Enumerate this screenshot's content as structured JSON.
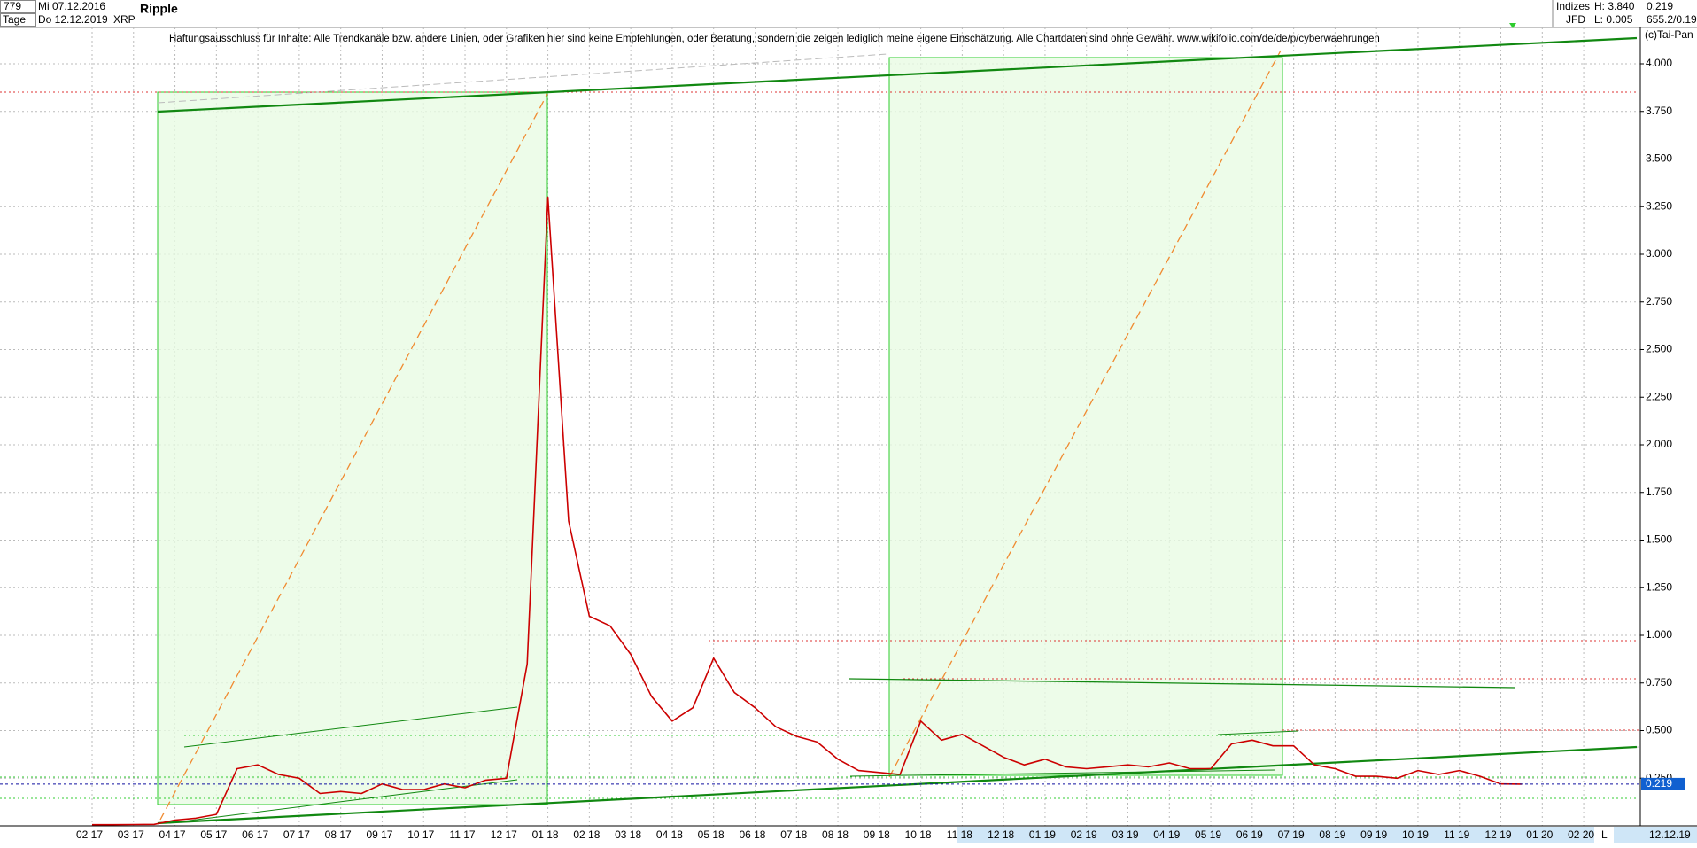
{
  "chart_data": {
    "type": "line",
    "title": "Ripple",
    "annotations": {
      "count": "779",
      "start": "Mi 07.12.2016",
      "period": "Tage",
      "end": "Do 12.12.2019",
      "symbol": "XRP",
      "disclaimer": "Haftungsausschluss für Inhalte: Alle Trendkanäle bzw. andere Linien, oder Grafiken hier sind keine Empfehlungen, oder Beratung, sondern die zeigen lediglich meine eigene Einschätzung. Alle Chartdaten sind ohne Gewähr.  www.wikifolio.com/de/de/p/cyberwaehrungen",
      "index": "Indizes",
      "broker": "JFD",
      "high": "H: 3.840",
      "low": "L: 0.005",
      "volume": "655.2/0.19",
      "copyright": "(c)Tai-Pan",
      "scale": "L",
      "last_date": "12.12.19"
    },
    "categories": [
      "02 17",
      null,
      "03 17",
      null,
      "04 17",
      null,
      "05 17",
      null,
      "06 17",
      null,
      "07 17",
      null,
      "08 17",
      null,
      "09 17",
      null,
      "10 17",
      null,
      "11 17",
      null,
      "12 17",
      null,
      "01 18",
      null,
      "02 18",
      null,
      "03 18",
      null,
      "04 18",
      null,
      "05 18",
      null,
      "06 18",
      null,
      "07 18",
      null,
      "08 18",
      null,
      "09 18",
      null,
      "10 18",
      null,
      "11 18",
      null,
      "12 18",
      null,
      "01 19",
      null,
      "02 19",
      null,
      "03 19",
      null,
      "04 19",
      null,
      "05 19",
      null,
      "06 19",
      null,
      "07 19",
      null,
      "08 19",
      null,
      "09 19",
      null,
      "10 19",
      null,
      "11 19",
      null,
      "12 19",
      null,
      "01 20",
      null,
      "02 20"
    ],
    "series": [
      {
        "name": "XRP",
        "color": "#cc0000",
        "values": [
          0.006,
          0.006,
          0.007,
          0.008,
          0.03,
          0.04,
          0.06,
          0.3,
          0.32,
          0.27,
          0.25,
          0.17,
          0.18,
          0.17,
          0.22,
          0.19,
          0.19,
          0.22,
          0.2,
          0.24,
          0.25,
          0.85,
          3.3,
          1.6,
          1.1,
          1.05,
          0.9,
          0.68,
          0.55,
          0.62,
          0.88,
          0.7,
          0.62,
          0.52,
          0.47,
          0.44,
          0.35,
          0.29,
          0.28,
          0.27,
          0.55,
          0.45,
          0.48,
          0.42,
          0.36,
          0.32,
          0.35,
          0.31,
          0.3,
          0.31,
          0.32,
          0.31,
          0.33,
          0.3,
          0.3,
          0.43,
          0.45,
          0.42,
          0.42,
          0.32,
          0.3,
          0.26,
          0.26,
          0.25,
          0.29,
          0.27,
          0.29,
          0.26,
          0.22,
          0.219,
          null,
          null,
          null
        ]
      }
    ],
    "ylim": [
      0,
      4
    ],
    "yticks": [
      {
        "value": 0.25,
        "label": "0.250"
      },
      {
        "value": 0.5,
        "label": "0.500"
      },
      {
        "value": 0.75,
        "label": "0.750"
      },
      {
        "value": 1,
        "label": "1.000"
      },
      {
        "value": 1.25,
        "label": "1.250"
      },
      {
        "value": 1.5,
        "label": "1.500"
      },
      {
        "value": 1.75,
        "label": "1.750"
      },
      {
        "value": 2,
        "label": "2.000"
      },
      {
        "value": 2.25,
        "label": "2.250"
      },
      {
        "value": 2.5,
        "label": "2.500"
      },
      {
        "value": 2.75,
        "label": "2.750"
      },
      {
        "value": 3,
        "label": "3.000"
      },
      {
        "value": 3.25,
        "label": "3.250"
      },
      {
        "value": 3.5,
        "label": "3.500"
      },
      {
        "value": 3.75,
        "label": "3.750"
      },
      {
        "value": 4,
        "label": "4.000"
      }
    ],
    "grid": true
  }
}
